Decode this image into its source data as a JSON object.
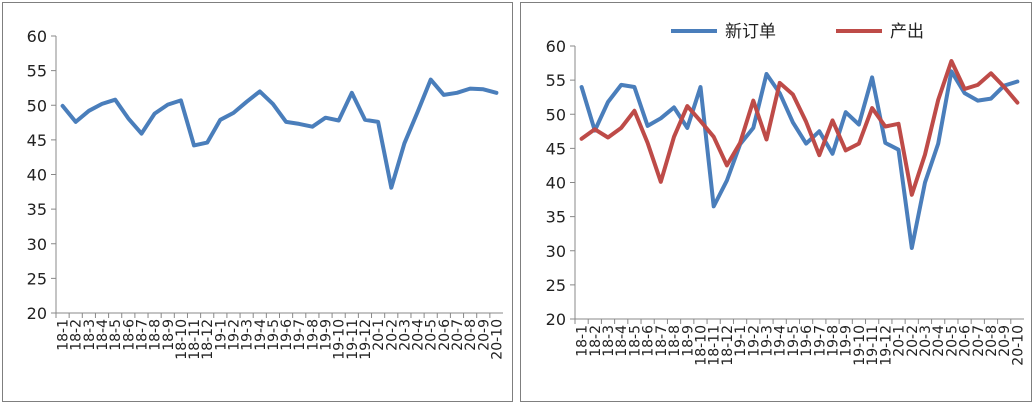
{
  "chart_data": [
    {
      "type": "line",
      "categories": [
        "18-1",
        "18-2",
        "18-3",
        "18-4",
        "18-5",
        "18-6",
        "18-7",
        "18-8",
        "18-9",
        "18-10",
        "18-11",
        "18-12",
        "19-1",
        "19-2",
        "19-3",
        "19-4",
        "19-5",
        "19-6",
        "19-7",
        "19-8",
        "19-9",
        "19-10",
        "19-11",
        "19-12",
        "20-1",
        "20-2",
        "20-3",
        "20-4",
        "20-5",
        "20-6",
        "20-7",
        "20-8",
        "20-9",
        "20-10"
      ],
      "series": [
        {
          "values": [
            49.9,
            47.6,
            49.2,
            50.2,
            50.8,
            48.1,
            45.9,
            48.8,
            50.1,
            50.7,
            44.2,
            44.6,
            47.9,
            48.9,
            50.5,
            52.0,
            50.2,
            47.6,
            47.3,
            46.9,
            48.2,
            47.8,
            51.8,
            47.9,
            47.6,
            38.1,
            44.5,
            49.0,
            53.7,
            51.5,
            51.8,
            52.4,
            52.3,
            51.8
          ],
          "color": "#4a7ebb"
        }
      ],
      "ylim": [
        20,
        60
      ],
      "yticks": [
        "20",
        "25",
        "30",
        "35",
        "40",
        "45",
        "50",
        "55",
        "60"
      ],
      "grid": false
    },
    {
      "type": "line",
      "categories": [
        "18-1",
        "18-2",
        "18-3",
        "18-4",
        "18-5",
        "18-6",
        "18-7",
        "18-8",
        "18-9",
        "18-10",
        "18-11",
        "18-12",
        "19-1",
        "19-2",
        "19-3",
        "19-4",
        "19-5",
        "19-6",
        "19-7",
        "19-8",
        "19-9",
        "19-10",
        "19-11",
        "19-12",
        "20-1",
        "20-2",
        "20-3",
        "20-4",
        "20-5",
        "20-6",
        "20-7",
        "20-8",
        "20-9",
        "20-10"
      ],
      "series": [
        {
          "name": "新订单",
          "color": "#4a7ebb",
          "values": [
            54.0,
            47.6,
            51.8,
            54.3,
            54.0,
            48.3,
            49.4,
            51.0,
            48.0,
            54.0,
            36.5,
            40.3,
            45.6,
            48.0,
            55.9,
            53.1,
            48.8,
            45.7,
            47.5,
            44.2,
            50.3,
            48.5,
            55.4,
            45.8,
            44.8,
            30.4,
            40.0,
            45.7,
            56.3,
            53.1,
            52.0,
            52.3,
            54.2,
            54.8
          ]
        },
        {
          "name": "产出",
          "color": "#be4b48",
          "values": [
            46.4,
            47.8,
            46.6,
            48.0,
            50.5,
            45.8,
            40.1,
            46.7,
            51.2,
            49.0,
            46.7,
            42.5,
            45.8,
            52.0,
            46.3,
            54.6,
            52.9,
            48.9,
            44.0,
            49.1,
            44.7,
            45.7,
            50.9,
            48.2,
            48.6,
            38.2,
            44.1,
            52.1,
            57.8,
            53.7,
            54.3,
            56.0,
            54.0,
            51.7
          ]
        }
      ],
      "ylim": [
        20,
        60
      ],
      "yticks": [
        "20",
        "25",
        "30",
        "35",
        "40",
        "45",
        "50",
        "55",
        "60"
      ],
      "legend": "top",
      "grid": false
    }
  ]
}
